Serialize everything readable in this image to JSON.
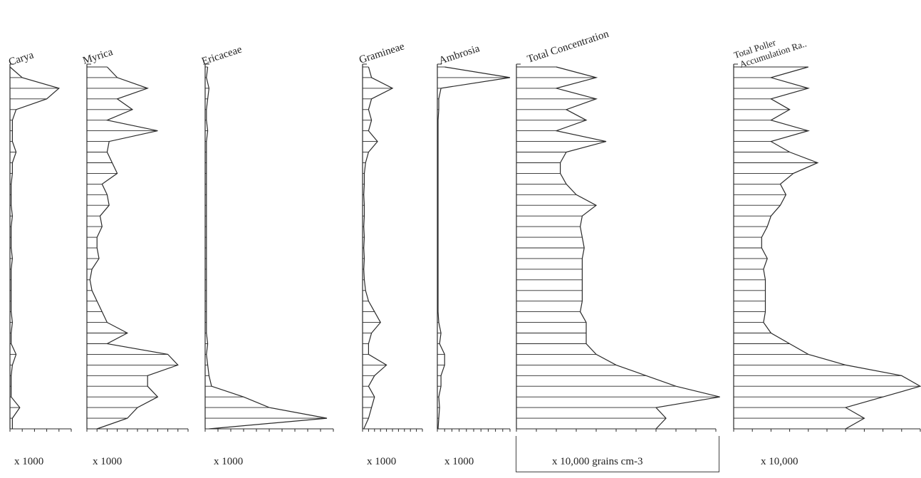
{
  "chart_data": [
    {
      "type": "area",
      "title": "Carya",
      "xlabel": "x 1000",
      "xlim": [
        0,
        5
      ],
      "values": [
        0,
        1,
        4,
        3,
        0.5,
        0.2,
        0.2,
        0.2,
        0.5,
        0.2,
        0.2,
        0.1,
        0.1,
        0.1,
        0.2,
        0.1,
        0.1,
        0.1,
        0.2,
        0.1,
        0.1,
        0.1,
        0.1,
        0.1,
        0.2,
        0.1,
        0.1,
        0.5,
        0.2,
        0.1,
        0.1,
        0.1,
        0.8,
        0.2,
        0.2
      ]
    },
    {
      "type": "area",
      "title": "Myrica",
      "xlabel": "x 1000",
      "xlim": [
        0,
        10
      ],
      "values": [
        2,
        3,
        6,
        3,
        4.5,
        2,
        7,
        2.2,
        2,
        2.5,
        3,
        1.5,
        2,
        2.2,
        1.3,
        1.5,
        1,
        1,
        1.2,
        0.5,
        0.3,
        0.5,
        1,
        1.5,
        2,
        4,
        2,
        8,
        9,
        6,
        6,
        7,
        5,
        4,
        1
      ]
    },
    {
      "type": "area",
      "title": "Ericaceae",
      "xlabel": "x 1000",
      "xlim": [
        0,
        10
      ],
      "values": [
        0.2,
        0.1,
        0.3,
        0.2,
        0.1,
        0.1,
        0.2,
        0.1,
        0.1,
        0.1,
        0.1,
        0.1,
        0.1,
        0.1,
        0.1,
        0.1,
        0.1,
        0.1,
        0.1,
        0.1,
        0.1,
        0.1,
        0.1,
        0.1,
        0.1,
        0.1,
        0.2,
        0.1,
        0.2,
        0.3,
        0.5,
        3,
        5,
        9.5,
        0.3
      ]
    },
    {
      "type": "area",
      "title": "Gramineae",
      "xlabel": "x 1000",
      "xlim": [
        0,
        10
      ],
      "values": [
        1,
        1.5,
        5,
        1.5,
        1,
        1.5,
        1,
        2.5,
        1,
        0.5,
        0.3,
        0.3,
        0.2,
        0.3,
        0.3,
        0.2,
        0.3,
        0.2,
        0.3,
        0.2,
        0.3,
        0.5,
        1,
        2,
        3,
        1.5,
        1,
        1,
        4,
        2,
        1,
        2,
        1.5,
        1,
        0.2
      ]
    },
    {
      "type": "area",
      "title": "Ambrosia",
      "xlabel": "x 1000",
      "xlim": [
        0,
        10
      ],
      "values": [
        1,
        10,
        0.5,
        0.2,
        0.2,
        0.1,
        0.1,
        0.1,
        0.1,
        0.1,
        0.1,
        0.1,
        0.1,
        0.1,
        0.1,
        0.1,
        0.1,
        0.1,
        0.1,
        0.1,
        0.1,
        0.1,
        0.1,
        0.1,
        0.2,
        0.5,
        0.3,
        1,
        1,
        0.5,
        0.5,
        0.2,
        0.3,
        0.2,
        0.1
      ]
    },
    {
      "type": "area",
      "title": "Total Concentration",
      "xlabel": "x 10,000 grains cm-3",
      "xlim": [
        0,
        10
      ],
      "values": [
        2,
        4,
        2,
        4,
        2.5,
        3.5,
        2,
        4.5,
        2.5,
        2.2,
        2.2,
        2.5,
        3,
        4,
        3.3,
        3.2,
        3.3,
        3.4,
        3.3,
        3.3,
        3.3,
        3.3,
        3.3,
        3.2,
        3.5,
        3.5,
        3.5,
        4,
        5,
        6.5,
        8,
        10.2,
        7,
        7.5,
        7
      ]
    },
    {
      "type": "area",
      "title": "Total Pollen Accumulation Rate",
      "xlabel": "x 10,000",
      "xlim": [
        0,
        10
      ],
      "values": [
        4,
        2,
        4,
        2,
        3,
        2,
        4,
        2,
        3,
        4.5,
        3.2,
        2.5,
        2.8,
        2.5,
        2,
        1.8,
        1.5,
        1.5,
        1.8,
        1.6,
        1.7,
        1.7,
        1.7,
        1.7,
        1.6,
        2,
        3,
        4,
        6,
        9,
        10,
        8,
        6,
        7,
        6
      ]
    }
  ],
  "labels": {
    "carya_title": "Carya",
    "myrica_title": "Myrica",
    "ericaceae_title": "Ericaceae",
    "gramineae_title": "Gramineae",
    "ambrosia_title": "Ambrosia",
    "total_conc_title": "Total Concentration",
    "total_pollen_title_1": "Total Poller",
    "total_pollen_title_2": "Accumulation Ra..",
    "carya_unit": "x 1000",
    "myrica_unit": "x 1000",
    "ericaceae_unit": "x 1000",
    "gramineae_unit": "x 1000",
    "ambrosia_unit": "x 1000",
    "total_conc_unit": "x 10,000 grains cm-3",
    "total_pollen_unit": "x 10,000"
  },
  "colors": {
    "ink": "#2a2a2a",
    "background": "#ffffff"
  }
}
